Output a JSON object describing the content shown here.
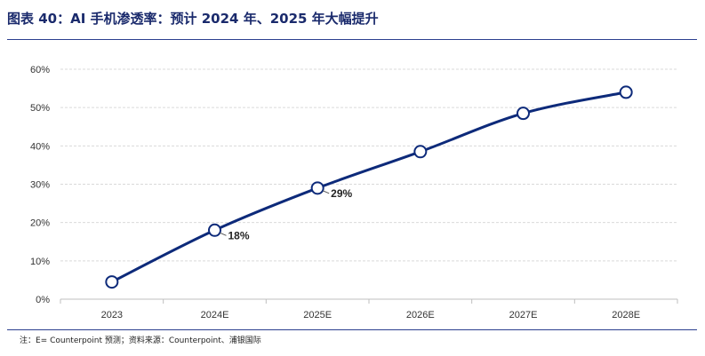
{
  "figure": {
    "title": "图表 40：AI 手机渗透率：预计 2024 年、2025 年大幅提升",
    "footnote": "注：E= Counterpoint 预测；资料来源：Counterpoint、浦银国际"
  },
  "colors": {
    "title": "#1a2a6c",
    "rule": "#2b3f8f",
    "line": "#0d2a7a",
    "grid": "#d9d9d9",
    "axis_text": "#333333"
  },
  "chart_data": {
    "type": "line",
    "categories": [
      "2023",
      "2024E",
      "2025E",
      "2026E",
      "2027E",
      "2028E"
    ],
    "series": [
      {
        "values": [
          4.5,
          18,
          29,
          38.5,
          48.5,
          54
        ]
      }
    ],
    "data_labels": [
      {
        "index": 1,
        "text": "18%"
      },
      {
        "index": 2,
        "text": "29%"
      }
    ],
    "y_ticks": [
      "0%",
      "10%",
      "20%",
      "30%",
      "40%",
      "50%",
      "60%"
    ],
    "ylim": [
      0,
      60
    ],
    "grid": true,
    "legend": "none"
  }
}
